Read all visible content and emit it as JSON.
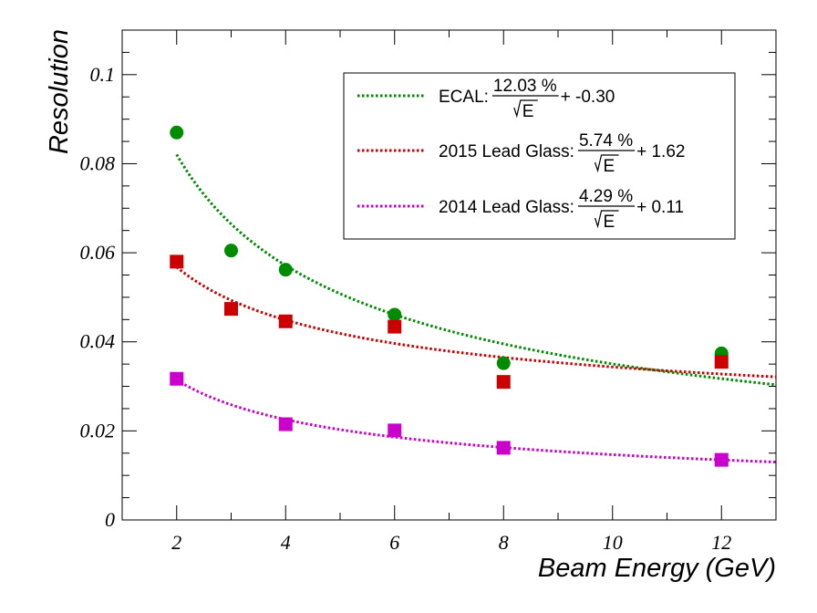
{
  "chart_data": {
    "type": "scatter",
    "xlabel": "Beam Energy (GeV)",
    "ylabel": "Resolution",
    "xlim": [
      1,
      13
    ],
    "ylim": [
      0,
      0.11
    ],
    "x_ticks": [
      2,
      4,
      6,
      8,
      10,
      12
    ],
    "x_tick_labels": [
      "2",
      "4",
      "6",
      "8",
      "10",
      "12"
    ],
    "y_ticks": [
      0,
      0.02,
      0.04,
      0.06,
      0.08,
      0.1
    ],
    "y_tick_labels": [
      "0",
      "0.02",
      "0.04",
      "0.06",
      "0.08",
      "0.1"
    ],
    "grid": false,
    "legend_position": "top-right",
    "series": [
      {
        "color": "#008c00",
        "marker": "circle",
        "x": [
          2,
          3,
          4,
          6,
          8,
          12
        ],
        "y": [
          0.087,
          0.0605,
          0.0562,
          0.0461,
          0.0352,
          0.0374
        ],
        "fit": {
          "a": 0.1203,
          "b": -0.003,
          "x_range": [
            2,
            13
          ]
        },
        "legend": {
          "prefix": "ECAL:",
          "numerator": "12.03 %",
          "denominator": "E",
          "suffix": " + -0.30"
        }
      },
      {
        "color": "#cc0000",
        "marker": "square",
        "x": [
          2,
          3,
          4,
          6,
          8,
          12
        ],
        "y": [
          0.058,
          0.0474,
          0.0446,
          0.0434,
          0.031,
          0.0355
        ],
        "fit": {
          "a": 0.0574,
          "b": 0.0162,
          "x_range": [
            2,
            13
          ]
        },
        "legend": {
          "prefix": "2015 Lead Glass:",
          "numerator": "5.74 %",
          "denominator": "E",
          "suffix": " + 1.62"
        }
      },
      {
        "color": "#cc00cc",
        "marker": "square",
        "x": [
          2,
          4,
          6,
          8,
          12
        ],
        "y": [
          0.0317,
          0.0215,
          0.0201,
          0.0162,
          0.0135
        ],
        "fit": {
          "a": 0.0429,
          "b": 0.0011,
          "x_range": [
            2,
            13
          ]
        },
        "legend": {
          "prefix": "2014 Lead Glass:",
          "numerator": "4.29 %",
          "denominator": "E",
          "suffix": " + 0.11"
        }
      }
    ]
  }
}
